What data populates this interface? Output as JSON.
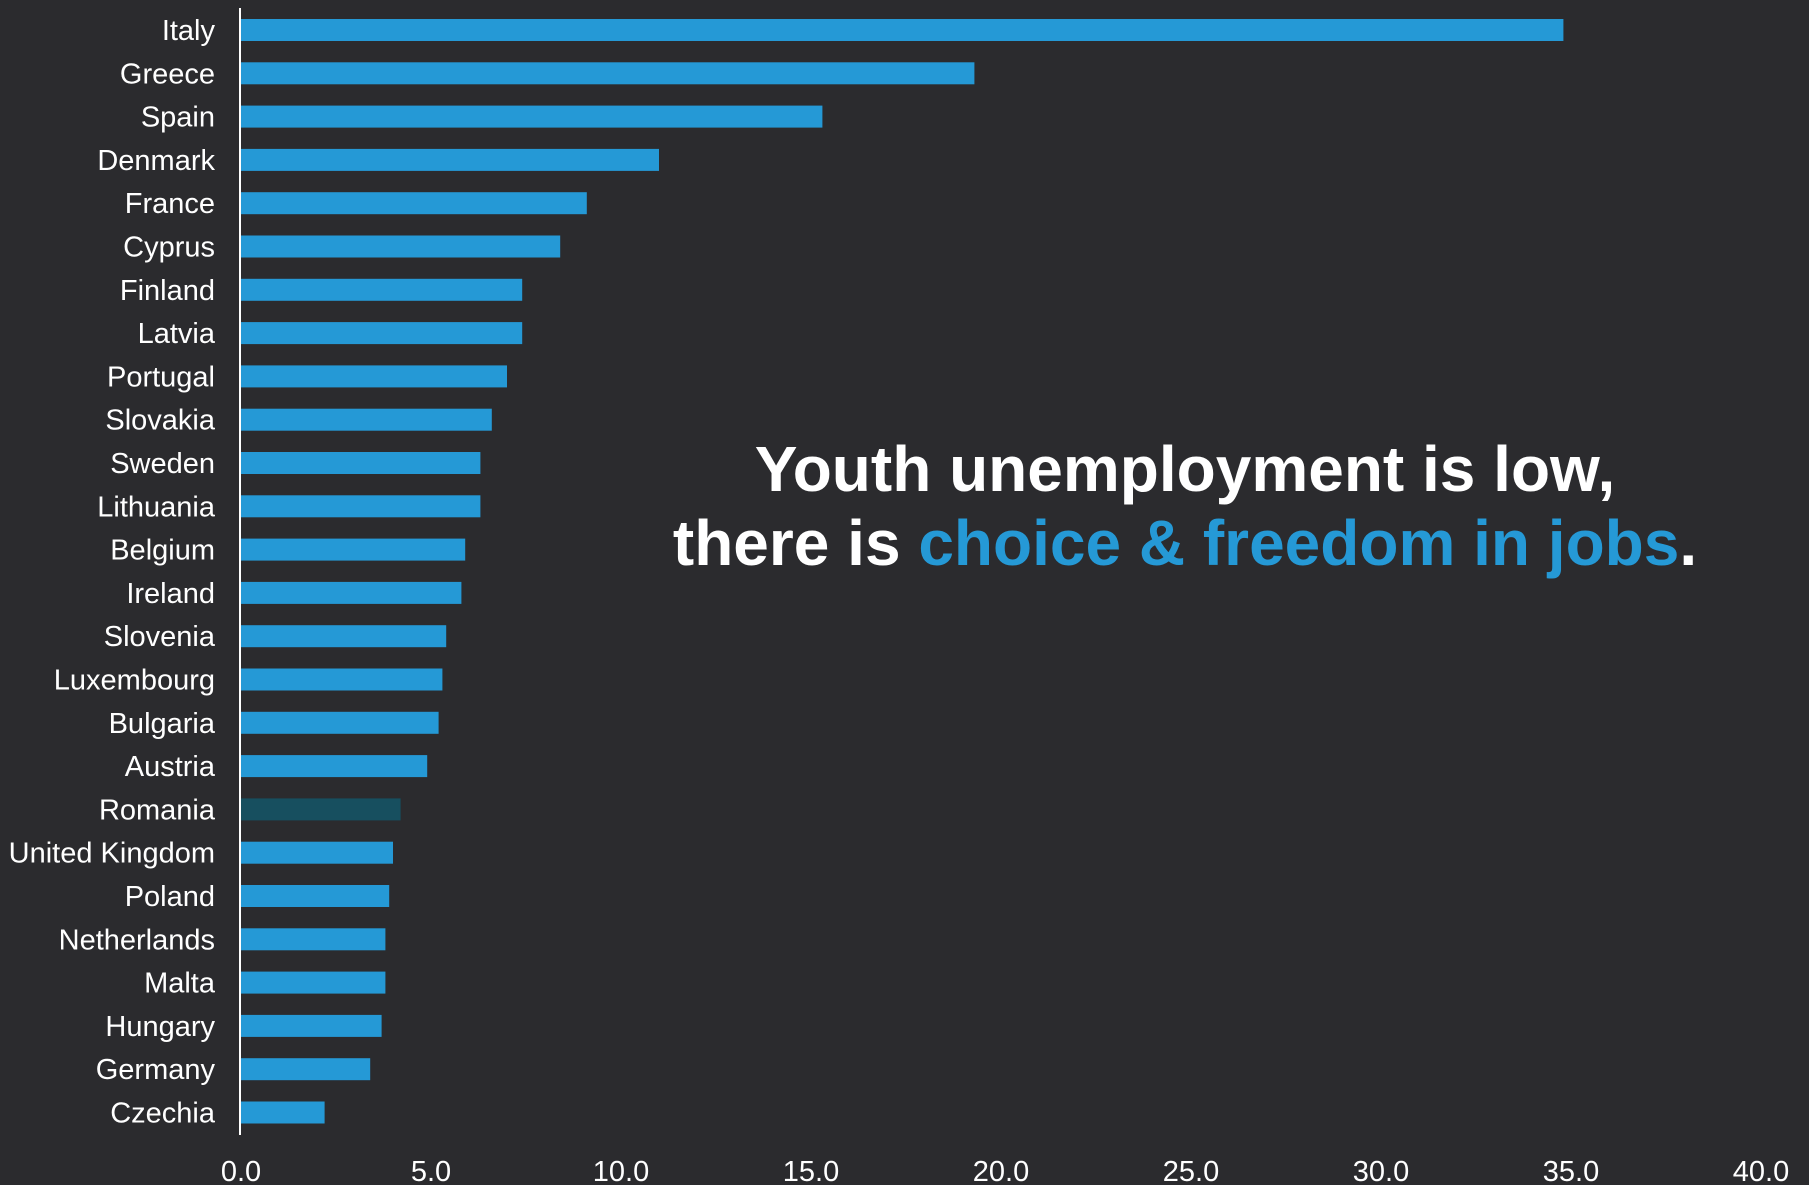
{
  "headline": {
    "line1": "Youth unemployment is low,",
    "line2_prefix": "there is ",
    "line2_accent": "choice & freedom in jobs",
    "line2_suffix": "."
  },
  "colors": {
    "background": "#2b2b2e",
    "bar": "#2599d6",
    "bar_highlight": "#174f5f",
    "text": "#ffffff",
    "accent": "#2599d6",
    "axis": "#ffffff"
  },
  "chart_data": {
    "type": "bar",
    "orientation": "horizontal",
    "categories": [
      "Italy",
      "Greece",
      "Spain",
      "Denmark",
      "France",
      "Cyprus",
      "Finland",
      "Latvia",
      "Portugal",
      "Slovakia",
      "Sweden",
      "Lithuania",
      "Belgium",
      "Ireland",
      "Slovenia",
      "Luxembourg",
      "Bulgaria",
      "Austria",
      "Romania",
      "United Kingdom",
      "Poland",
      "Netherlands",
      "Malta",
      "Hungary",
      "Germany",
      "Czechia"
    ],
    "values": [
      34.8,
      19.3,
      15.3,
      11.0,
      9.1,
      8.4,
      7.4,
      7.4,
      7.0,
      6.6,
      6.3,
      6.3,
      5.9,
      5.8,
      5.4,
      5.3,
      5.2,
      4.9,
      4.2,
      4.0,
      3.9,
      3.8,
      3.8,
      3.7,
      3.4,
      2.2
    ],
    "highlight": "Romania",
    "xlim": [
      0,
      40
    ],
    "xticks": [
      "0.0",
      "5.0",
      "10.0",
      "15.0",
      "20.0",
      "25.0",
      "30.0",
      "35.0",
      "40.0"
    ],
    "grid": false,
    "title": "",
    "xlabel": "",
    "ylabel": ""
  }
}
